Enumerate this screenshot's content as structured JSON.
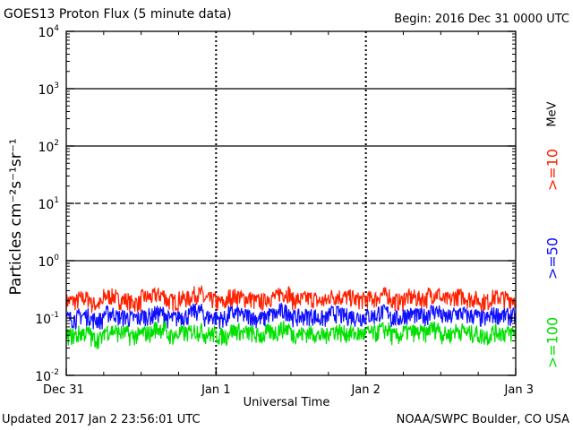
{
  "header": {
    "title": "GOES13 Proton Flux (5 minute data)",
    "begin": "Begin: 2016 Dec 31 0000 UTC"
  },
  "footer": {
    "updated": "Updated 2017 Jan  2 23:56:01 UTC",
    "credit": "NOAA/SWPC Boulder, CO USA"
  },
  "legend": {
    "unit": "MeV",
    "entries": [
      ">=10",
      ">=50",
      ">=100"
    ]
  },
  "chart_data": {
    "type": "line",
    "title": "GOES13 Proton Flux (5 minute data)",
    "xlabel": "Universal Time",
    "ylabel": "Particles cm⁻²s⁻¹sr⁻¹",
    "yscale": "log",
    "ylim": [
      0.01,
      10000
    ],
    "y_ticks": [
      {
        "value": 0.01,
        "base": "10",
        "exp": "-2"
      },
      {
        "value": 0.1,
        "base": "10",
        "exp": "-1"
      },
      {
        "value": 1,
        "base": "10",
        "exp": "0"
      },
      {
        "value": 10,
        "base": "10",
        "exp": "1"
      },
      {
        "value": 100,
        "base": "10",
        "exp": "2"
      },
      {
        "value": 1000,
        "base": "10",
        "exp": "3"
      },
      {
        "value": 10000,
        "base": "10",
        "exp": "4"
      }
    ],
    "xlim": [
      "2016-12-31 00:00",
      "2017-01-03 00:00"
    ],
    "x_ticks": [
      {
        "value": "2016-12-31 00:00",
        "label": "Dec 31"
      },
      {
        "value": "2017-01-01 00:00",
        "label": "Jan 1"
      },
      {
        "value": "2017-01-02 00:00",
        "label": "Jan 2"
      },
      {
        "value": "2017-01-03 00:00",
        "label": "Jan 3"
      }
    ],
    "reference_lines": [
      {
        "value": 1000,
        "style": "solid"
      },
      {
        "value": 100,
        "style": "solid"
      },
      {
        "value": 10,
        "style": "dashed"
      },
      {
        "value": 1,
        "style": "solid"
      }
    ],
    "x_sampling_hours": 2,
    "series": [
      {
        "name": ">=10 MeV",
        "color": "#ff2000",
        "values": [
          0.18,
          0.2,
          0.16,
          0.22,
          0.19,
          0.17,
          0.21,
          0.23,
          0.18,
          0.2,
          0.24,
          0.19,
          0.17,
          0.22,
          0.2,
          0.18,
          0.21,
          0.25,
          0.19,
          0.2,
          0.18,
          0.22,
          0.21,
          0.19,
          0.2,
          0.23,
          0.18,
          0.21,
          0.2,
          0.24,
          0.19,
          0.22,
          0.2,
          0.18,
          0.21,
          0.2
        ]
      },
      {
        "name": ">=50 MeV",
        "color": "#1010ff",
        "values": [
          0.09,
          0.1,
          0.085,
          0.11,
          0.095,
          0.09,
          0.1,
          0.11,
          0.09,
          0.1,
          0.12,
          0.095,
          0.09,
          0.11,
          0.1,
          0.09,
          0.105,
          0.12,
          0.095,
          0.1,
          0.09,
          0.11,
          0.1,
          0.095,
          0.1,
          0.115,
          0.09,
          0.105,
          0.1,
          0.12,
          0.095,
          0.11,
          0.1,
          0.09,
          0.105,
          0.1
        ]
      },
      {
        "name": ">=100 MeV",
        "color": "#00e000",
        "values": [
          0.045,
          0.05,
          0.04,
          0.055,
          0.05,
          0.045,
          0.05,
          0.06,
          0.045,
          0.05,
          0.055,
          0.048,
          0.045,
          0.055,
          0.05,
          0.045,
          0.052,
          0.06,
          0.048,
          0.05,
          0.045,
          0.055,
          0.05,
          0.048,
          0.05,
          0.057,
          0.045,
          0.052,
          0.05,
          0.06,
          0.048,
          0.055,
          0.05,
          0.045,
          0.052,
          0.05
        ]
      }
    ]
  }
}
